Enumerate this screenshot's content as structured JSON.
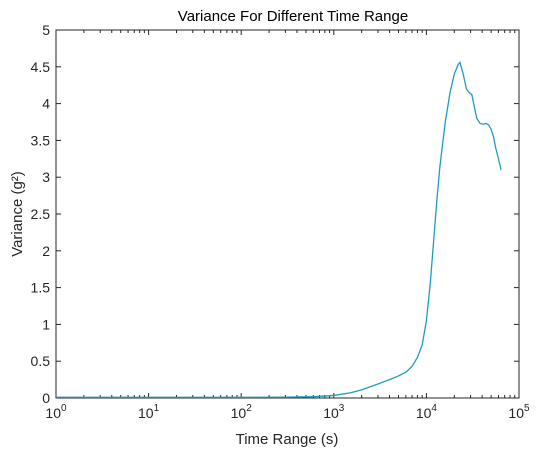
{
  "chart_data": {
    "type": "line",
    "title": "Variance For Different Time Range",
    "xlabel": "Time Range (s)",
    "ylabel": "Variance (g²)",
    "xscale": "log",
    "xlim": [
      1,
      100000
    ],
    "ylim": [
      0,
      5
    ],
    "grid": false,
    "line_color": "#1f9bbf",
    "x_ticks": [
      {
        "base": "10",
        "exp": "0"
      },
      {
        "base": "10",
        "exp": "1"
      },
      {
        "base": "10",
        "exp": "2"
      },
      {
        "base": "10",
        "exp": "3"
      },
      {
        "base": "10",
        "exp": "4"
      },
      {
        "base": "10",
        "exp": "5"
      }
    ],
    "y_ticks": [
      "0",
      "0.5",
      "1",
      "1.5",
      "2",
      "2.5",
      "3",
      "3.5",
      "4",
      "4.5",
      "5"
    ],
    "series": [
      {
        "x": [
          1,
          10,
          100,
          300,
          600,
          1000,
          1500,
          2000,
          3000,
          4000,
          5000,
          6000,
          7000,
          8000,
          9000,
          10000,
          11000,
          12000,
          13000,
          14000,
          16000,
          18000,
          20000,
          22000,
          23000,
          25000,
          27000,
          29000,
          31000,
          33000,
          35000,
          38000,
          41000,
          44000,
          47000,
          50000,
          53000,
          56000,
          60000,
          64000
        ],
        "y": [
          0.01,
          0.01,
          0.01,
          0.012,
          0.018,
          0.035,
          0.07,
          0.11,
          0.19,
          0.25,
          0.3,
          0.35,
          0.43,
          0.55,
          0.72,
          1.05,
          1.55,
          2.15,
          2.7,
          3.15,
          3.75,
          4.15,
          4.4,
          4.53,
          4.56,
          4.4,
          4.2,
          4.15,
          4.12,
          3.95,
          3.8,
          3.73,
          3.72,
          3.73,
          3.71,
          3.65,
          3.55,
          3.4,
          3.25,
          3.1
        ]
      }
    ]
  }
}
